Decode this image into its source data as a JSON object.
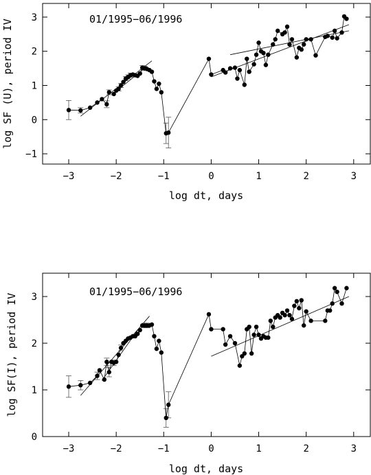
{
  "chart_data": [
    {
      "type": "scatter",
      "annotation": "01/1995−06/1996",
      "xlabel": "log dt, days",
      "ylabel": "log SF (U), period IV",
      "xlim": [
        -3.55,
        3.35
      ],
      "ylim": [
        -1.3,
        3.4
      ],
      "xticks": [
        -3,
        -2,
        -1,
        0,
        1,
        2,
        3
      ],
      "yticks": [
        -1,
        0,
        1,
        2,
        3
      ],
      "connected": true,
      "x": [
        -3.0,
        -2.75,
        -2.55,
        -2.4,
        -2.3,
        -2.2,
        -2.15,
        -2.05,
        -2.0,
        -1.95,
        -1.9,
        -1.85,
        -1.8,
        -1.75,
        -1.7,
        -1.65,
        -1.6,
        -1.55,
        -1.5,
        -1.45,
        -1.4,
        -1.35,
        -1.3,
        -1.25,
        -1.2,
        -1.15,
        -1.1,
        -1.05,
        -0.95,
        -0.9,
        -0.05,
        0.0,
        0.25,
        0.3,
        0.4,
        0.5,
        0.55,
        0.6,
        0.7,
        0.75,
        0.8,
        0.9,
        0.95,
        1.0,
        1.05,
        1.1,
        1.15,
        1.2,
        1.3,
        1.35,
        1.4,
        1.5,
        1.55,
        1.6,
        1.65,
        1.7,
        1.8,
        1.85,
        1.9,
        1.95,
        2.0,
        2.1,
        2.2,
        2.4,
        2.45,
        2.55,
        2.6,
        2.65,
        2.75,
        2.8,
        2.85
      ],
      "y": [
        0.28,
        0.27,
        0.35,
        0.5,
        0.6,
        0.45,
        0.8,
        0.75,
        0.85,
        0.9,
        1.0,
        1.1,
        1.2,
        1.25,
        1.3,
        1.32,
        1.3,
        1.28,
        1.35,
        1.52,
        1.5,
        1.48,
        1.45,
        1.4,
        1.12,
        0.9,
        1.05,
        0.8,
        -0.4,
        -0.38,
        1.78,
        1.32,
        1.45,
        1.38,
        1.5,
        1.52,
        1.2,
        1.45,
        1.02,
        1.78,
        1.4,
        1.62,
        1.9,
        2.25,
        2.0,
        1.95,
        1.6,
        1.9,
        2.2,
        2.35,
        2.6,
        2.5,
        2.55,
        2.72,
        2.2,
        2.35,
        1.82,
        2.1,
        2.05,
        2.2,
        2.35,
        2.35,
        1.88,
        2.42,
        2.45,
        2.4,
        2.6,
        2.38,
        2.55,
        3.02,
        2.95
      ],
      "error_bars": [
        {
          "x": -3.0,
          "y": 0.28,
          "err": 0.28
        },
        {
          "x": -2.75,
          "y": 0.27,
          "err": 0.08
        },
        {
          "x": -2.2,
          "y": 0.45,
          "err": 0.1
        },
        {
          "x": -2.15,
          "y": 0.8,
          "err": 0.07
        },
        {
          "x": -1.95,
          "y": 0.9,
          "err": 0.06
        },
        {
          "x": -1.9,
          "y": 1.0,
          "err": 0.06
        },
        {
          "x": -1.8,
          "y": 1.2,
          "err": 0.06
        },
        {
          "x": -1.75,
          "y": 1.25,
          "err": 0.06
        },
        {
          "x": -1.7,
          "y": 1.3,
          "err": 0.06
        },
        {
          "x": -1.45,
          "y": 1.52,
          "err": 0.06
        },
        {
          "x": -1.4,
          "y": 1.5,
          "err": 0.06
        },
        {
          "x": -0.95,
          "y": -0.4,
          "err": 0.3
        },
        {
          "x": -0.9,
          "y": -0.38,
          "err": 0.45
        }
      ],
      "fit_lines": [
        {
          "x": [
            -2.75,
            -1.25
          ],
          "y": [
            0.1,
            1.72
          ]
        },
        {
          "x": [
            -2.1,
            -1.35
          ],
          "y": [
            0.72,
            1.56
          ]
        },
        {
          "x": [
            0.0,
            2.9
          ],
          "y": [
            1.25,
            2.78
          ]
        },
        {
          "x": [
            0.4,
            2.9
          ],
          "y": [
            1.9,
            2.6
          ]
        }
      ]
    },
    {
      "type": "scatter",
      "annotation": "01/1995−06/1996",
      "xlabel": "log dt, days",
      "ylabel": "log SF(I), period IV",
      "xlim": [
        -3.55,
        3.35
      ],
      "ylim": [
        0,
        3.5
      ],
      "xticks": [
        -3,
        -2,
        -1,
        0,
        1,
        2,
        3
      ],
      "yticks": [
        0,
        1,
        2,
        3
      ],
      "connected": true,
      "x": [
        -3.0,
        -2.75,
        -2.55,
        -2.4,
        -2.35,
        -2.25,
        -2.2,
        -2.15,
        -2.1,
        -2.05,
        -2.0,
        -1.95,
        -1.9,
        -1.85,
        -1.8,
        -1.75,
        -1.7,
        -1.65,
        -1.6,
        -1.55,
        -1.5,
        -1.45,
        -1.4,
        -1.35,
        -1.3,
        -1.25,
        -1.2,
        -1.15,
        -1.1,
        -1.05,
        -0.95,
        -0.9,
        -0.05,
        0.0,
        0.25,
        0.3,
        0.4,
        0.5,
        0.6,
        0.65,
        0.7,
        0.75,
        0.8,
        0.85,
        0.9,
        0.95,
        1.0,
        1.05,
        1.1,
        1.15,
        1.2,
        1.25,
        1.3,
        1.35,
        1.4,
        1.45,
        1.5,
        1.55,
        1.6,
        1.65,
        1.7,
        1.75,
        1.8,
        1.85,
        1.9,
        1.95,
        2.0,
        2.1,
        2.4,
        2.45,
        2.5,
        2.55,
        2.6,
        2.65,
        2.75,
        2.85
      ],
      "y": [
        1.07,
        1.1,
        1.15,
        1.3,
        1.42,
        1.22,
        1.6,
        1.38,
        1.6,
        1.58,
        1.6,
        1.75,
        1.9,
        2.0,
        2.05,
        2.1,
        2.12,
        2.15,
        2.15,
        2.2,
        2.28,
        2.38,
        2.38,
        2.38,
        2.38,
        2.4,
        2.15,
        1.88,
        2.05,
        1.8,
        0.4,
        0.68,
        2.62,
        2.3,
        2.3,
        1.97,
        2.15,
        2.0,
        1.52,
        1.72,
        1.78,
        2.3,
        2.35,
        1.78,
        2.18,
        2.35,
        2.18,
        2.1,
        2.15,
        2.12,
        2.12,
        2.48,
        2.35,
        2.55,
        2.6,
        2.55,
        2.65,
        2.6,
        2.7,
        2.6,
        2.52,
        2.8,
        2.9,
        2.75,
        2.92,
        2.38,
        2.68,
        2.48,
        2.48,
        2.7,
        2.7,
        2.85,
        3.18,
        3.1,
        2.85,
        3.18
      ],
      "error_bars": [
        {
          "x": -3.0,
          "y": 1.07,
          "err": 0.23
        },
        {
          "x": -2.75,
          "y": 1.1,
          "err": 0.1
        },
        {
          "x": -2.4,
          "y": 1.3,
          "err": 0.08
        },
        {
          "x": -2.2,
          "y": 1.6,
          "err": 0.08
        },
        {
          "x": -2.15,
          "y": 1.38,
          "err": 0.1
        },
        {
          "x": -2.05,
          "y": 1.58,
          "err": 0.06
        },
        {
          "x": -1.9,
          "y": 1.9,
          "err": 0.06
        },
        {
          "x": -1.4,
          "y": 2.38,
          "err": 0.05
        },
        {
          "x": -1.35,
          "y": 2.38,
          "err": 0.05
        },
        {
          "x": -0.95,
          "y": 0.4,
          "err": 0.2
        },
        {
          "x": -0.9,
          "y": 0.68,
          "err": 0.28
        }
      ],
      "fit_lines": [
        {
          "x": [
            -2.75,
            -1.3
          ],
          "y": [
            0.88,
            2.58
          ]
        },
        {
          "x": [
            -2.3,
            -1.55
          ],
          "y": [
            1.2,
            2.28
          ]
        },
        {
          "x": [
            0.0,
            2.9
          ],
          "y": [
            1.72,
            3.0
          ]
        }
      ]
    }
  ]
}
